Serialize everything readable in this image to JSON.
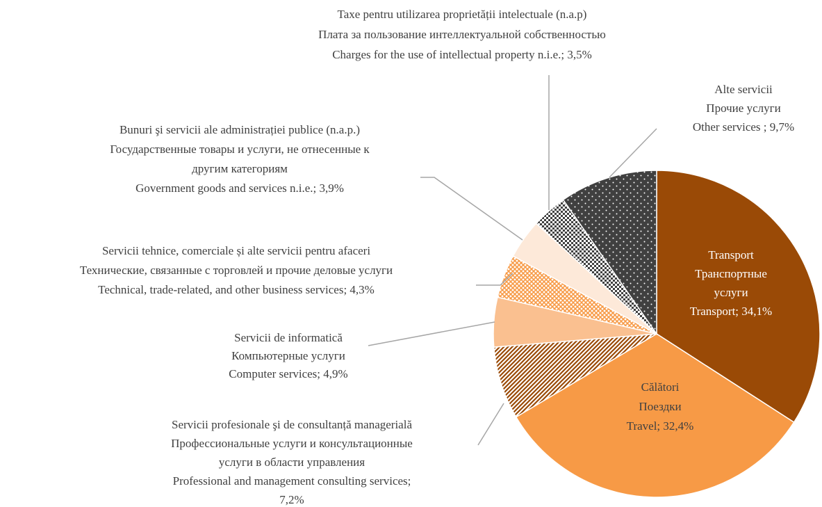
{
  "chart_data": {
    "type": "pie",
    "categories": [
      [
        "Transport",
        "Транспортные",
        "услуги",
        "Transport;"
      ],
      [
        "Călători",
        "Поездки",
        "Travel;"
      ],
      [
        "Servicii profesionale şi de consultanță managerială",
        "Профессиональные услуги и консультационные",
        "услуги в области управления",
        "Professional and management consulting services;"
      ],
      [
        "Servicii de informatică",
        "Компьютерные услуги",
        "Computer services;"
      ],
      [
        "Servicii tehnice, comerciale și alte servicii pentru afaceri",
        "Технические, связанные с торговлей и прочие деловые услуги",
        "Technical, trade-related, and other business services;"
      ],
      [
        "Bunuri şi servicii ale administrației publice (n.a.p.)",
        "Государственные товары и услуги, не отнесенные к",
        "другим категориям",
        "Government goods and services n.i.e.;"
      ],
      [
        "Taxe pentru utilizarea proprietății intelectuale (n.a.p)",
        "Плата за пользование интеллектуальной собственностью",
        "Charges for the use of intellectual property n.i.e.;"
      ],
      [
        "Alte servicii",
        "Прочие услуги",
        "Other services ;"
      ]
    ],
    "values": [
      34.1,
      32.4,
      7.2,
      4.9,
      4.3,
      3.9,
      3.5,
      9.7
    ],
    "value_labels": [
      "34,1%",
      "32,4%",
      "7,2%",
      "4,9%",
      "4,3%",
      "3,9%",
      "3,5%",
      "9,7%"
    ],
    "colors": [
      "#9a4a06",
      "#f79a46",
      "#9a4a06",
      "#fac090",
      "#f79a46",
      "#fde9d9",
      "#404040",
      "#404040"
    ],
    "patterns": [
      null,
      null,
      "diagonal",
      null,
      "crosshatch",
      null,
      "checker",
      "dots"
    ]
  }
}
